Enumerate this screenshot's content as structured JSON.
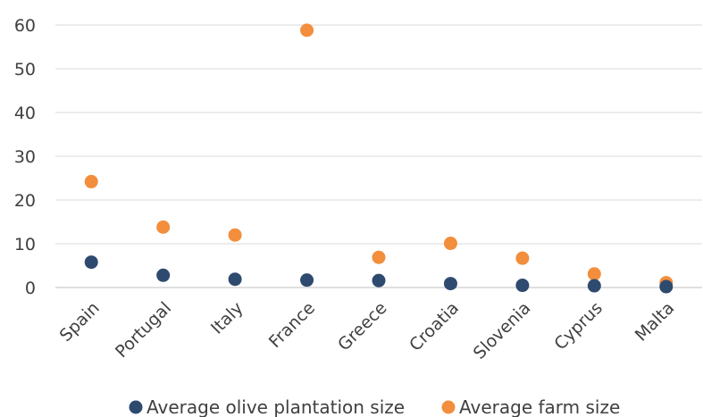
{
  "chart_data": {
    "type": "scatter",
    "categories": [
      "Spain",
      "Portugal",
      "Italy",
      "France",
      "Greece",
      "Croatia",
      "Slovenia",
      "Cyprus",
      "Malta"
    ],
    "series": [
      {
        "name": "Average olive plantation size",
        "color": "#2e4a6f",
        "values": [
          5.8,
          2.8,
          1.9,
          1.7,
          1.6,
          0.9,
          0.5,
          0.4,
          0.2
        ]
      },
      {
        "name": "Average farm size",
        "color": "#f28e3c",
        "values": [
          24.2,
          13.8,
          12.0,
          58.8,
          6.9,
          10.1,
          6.7,
          3.1,
          1.1
        ]
      }
    ],
    "ylim": [
      0,
      60
    ],
    "yticks": [
      0,
      10,
      20,
      30,
      40,
      50,
      60
    ],
    "grid": true,
    "legend_position": "bottom"
  }
}
